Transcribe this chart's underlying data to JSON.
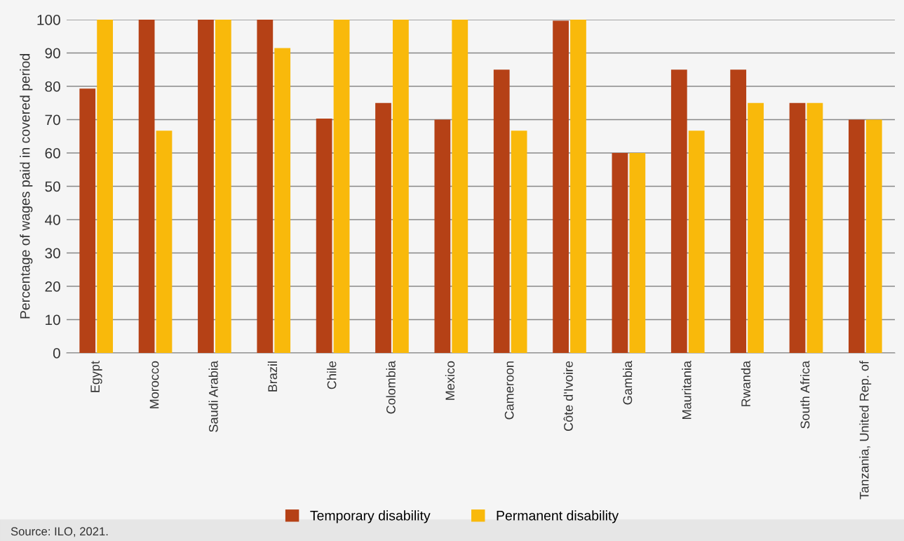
{
  "chart_data": {
    "type": "bar",
    "ylabel": "Percentage of wages paid in covered period",
    "categories": [
      "Egypt",
      "Morocco",
      "Saudi Arabia",
      "Brazil",
      "Chile",
      "Colombia",
      "Mexico",
      "Cameroon",
      "Côte d'Ivoire",
      "Gambia",
      "Mauritania",
      "Rwanda",
      "South Africa",
      "Tanzania, United Rep. of"
    ],
    "series": [
      {
        "name": "Temporary disability",
        "color": "#b54116",
        "values": [
          79.3,
          100,
          100,
          100,
          70.3,
          75,
          70,
          85,
          99.7,
          60,
          85,
          85,
          75,
          70
        ]
      },
      {
        "name": "Permanent disability",
        "color": "#f9b90b",
        "values": [
          100,
          66.7,
          100,
          91.5,
          100,
          100,
          100,
          66.7,
          100,
          60,
          66.7,
          75,
          75,
          70
        ]
      }
    ],
    "ylim": [
      0,
      100
    ],
    "yticks": [
      0,
      10,
      20,
      30,
      40,
      50,
      60,
      70,
      80,
      90,
      100
    ],
    "grid": "y",
    "legend": "bottom",
    "annotations": [
      "Source: ILO, 2021."
    ]
  }
}
